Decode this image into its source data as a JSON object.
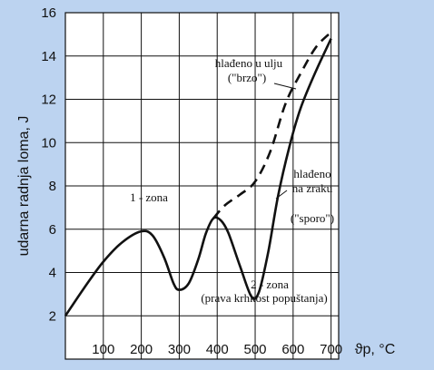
{
  "chart_data": {
    "type": "line",
    "ylabel": "udarna radnja loma, J",
    "xlabel": "ϑp, °C",
    "xlim": [
      0,
      720
    ],
    "ylim": [
      0,
      16
    ],
    "x_ticks": [
      100,
      200,
      300,
      400,
      500,
      600,
      700
    ],
    "y_ticks": [
      2,
      4,
      6,
      8,
      10,
      12,
      14,
      16
    ],
    "grid": true,
    "series": [
      {
        "name": "hlađeno na zraku (\"sporo\")",
        "style": "solid",
        "points": [
          [
            0,
            2
          ],
          [
            50,
            3.3
          ],
          [
            100,
            4.5
          ],
          [
            150,
            5.4
          ],
          [
            200,
            5.9
          ],
          [
            230,
            5.7
          ],
          [
            260,
            4.7
          ],
          [
            285,
            3.5
          ],
          [
            300,
            3.2
          ],
          [
            325,
            3.5
          ],
          [
            350,
            4.6
          ],
          [
            370,
            5.8
          ],
          [
            390,
            6.5
          ],
          [
            410,
            6.4
          ],
          [
            430,
            5.8
          ],
          [
            460,
            4.3
          ],
          [
            490,
            2.9
          ],
          [
            510,
            3.1
          ],
          [
            535,
            5.0
          ],
          [
            560,
            7.5
          ],
          [
            590,
            9.8
          ],
          [
            620,
            11.6
          ],
          [
            660,
            13.3
          ],
          [
            700,
            14.8
          ]
        ]
      },
      {
        "name": "hlađeno u ulju (\"brzo\")",
        "style": "dashed",
        "points": [
          [
            390,
            6.5
          ],
          [
            420,
            7.1
          ],
          [
            460,
            7.6
          ],
          [
            500,
            8.2
          ],
          [
            540,
            9.6
          ],
          [
            580,
            11.8
          ],
          [
            620,
            13.2
          ],
          [
            660,
            14.4
          ],
          [
            700,
            15.1
          ]
        ]
      }
    ],
    "annotations": {
      "zone1": "1 - zona",
      "oil_line1": "hlađeno u ulju",
      "oil_line2": "(\"brzo\")",
      "air_line1": "hlađeno",
      "air_line2": "na zraku",
      "air_line3": "(\"sporo\")",
      "zone2_line1": "2 - zona",
      "zone2_line2": "(prava krhkost popuštanja)"
    }
  }
}
